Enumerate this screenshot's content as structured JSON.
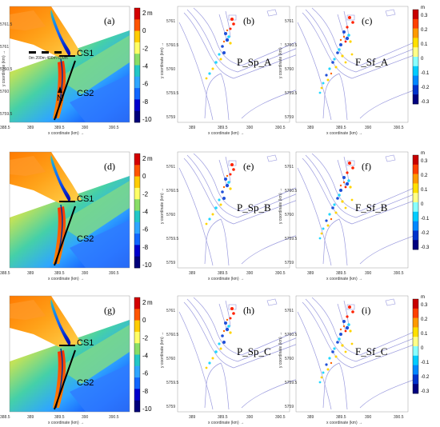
{
  "bathy_colorbar": {
    "unit": "m",
    "ticks": [
      "2",
      "0",
      "-2",
      "-4",
      "-6",
      "-8",
      "-10"
    ],
    "colors": [
      "#d40000",
      "#ff5500",
      "#ffcc00",
      "#ffff66",
      "#88dd66",
      "#22c7c7",
      "#2fa6ff",
      "#1166ff",
      "#0000cc",
      "#00007a"
    ]
  },
  "diff_colorbar": {
    "unit": "m",
    "ticks": [
      "0.3",
      "0.2",
      "0.1",
      "0",
      "-0.1",
      "-0.2",
      "-0.3"
    ],
    "colors": [
      "#c80000",
      "#ff4000",
      "#ff9a00",
      "#ffe000",
      "#ffff88",
      "#88ffff",
      "#00ccff",
      "#0088ff",
      "#0033cc",
      "#000080"
    ]
  },
  "axis": {
    "xlabel": "x coordinate (km) →",
    "ylabel": "y coordinate (km) →",
    "xticks_a": [
      "389",
      "389.5",
      "390",
      "390.5"
    ],
    "xticks_bathy_a": [
      "388.5",
      "389",
      "389.5",
      "390",
      "390.5"
    ],
    "yticks": [
      "5761",
      "5760.5",
      "5760",
      "5759.5",
      "5759"
    ],
    "yticks_a": [
      "5761.5",
      "5761",
      "5760.5",
      "5760",
      "5759.5"
    ]
  },
  "scale_bar": "0m 200m 400m 600m",
  "north": "N",
  "rows": [
    {
      "panels": [
        {
          "letter": "(a)",
          "cs1": "CS1",
          "cs2": "CS2"
        },
        {
          "letter": "(b)",
          "code": "P_Sp_A"
        },
        {
          "letter": "(c)",
          "code": "F_Sf_A"
        }
      ]
    },
    {
      "panels": [
        {
          "letter": "(d)",
          "cs1": "CS1",
          "cs2": "CS2"
        },
        {
          "letter": "(e)",
          "code": "P_Sp_B"
        },
        {
          "letter": "(f)",
          "code": "F_Sf_B"
        }
      ]
    },
    {
      "panels": [
        {
          "letter": "(g)",
          "cs1": "CS1",
          "cs2": "CS2"
        },
        {
          "letter": "(h)",
          "code": "P_Sp_C"
        },
        {
          "letter": "(i)",
          "code": "F_Sf_C"
        }
      ]
    }
  ]
}
